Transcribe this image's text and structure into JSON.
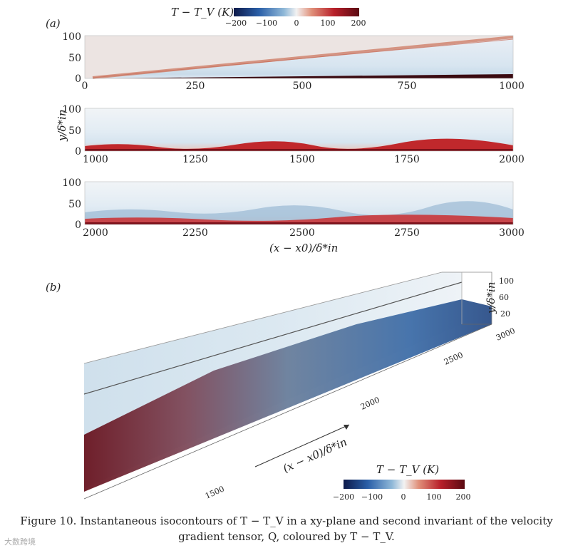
{
  "panel_a": {
    "label": "(a)",
    "colorbar": {
      "title": "T − T_V (K)",
      "ticks": [
        "−200",
        "−100",
        "0",
        "100",
        "200"
      ],
      "stops": [
        "#0d1a4a",
        "#2a5fa8",
        "#8fb8d8",
        "#f2f2f2",
        "#e0907a",
        "#b8202a",
        "#5a0a12"
      ]
    },
    "ylabel": "y/δ*in",
    "xlabel": "(x − x0)/δ*in",
    "rows": [
      {
        "x_ticks": [
          "0",
          "250",
          "500",
          "750",
          "1000"
        ],
        "y_ticks": [
          "100",
          "50",
          "0"
        ]
      },
      {
        "x_ticks": [
          "1000",
          "1250",
          "1500",
          "1750",
          "2000"
        ],
        "y_ticks": [
          "100",
          "50",
          "0"
        ]
      },
      {
        "x_ticks": [
          "2000",
          "2250",
          "2500",
          "2750",
          "3000"
        ],
        "y_ticks": [
          "100",
          "50",
          "0"
        ]
      }
    ]
  },
  "panel_b": {
    "label": "(b)",
    "x_ticks": [
      "1500",
      "2000",
      "2500",
      "3000"
    ],
    "y_ticks": [
      "100",
      "60",
      "20"
    ],
    "ylabel": "y/δ*in",
    "axis_label": "(x − x0)/δ*in",
    "colorbar": {
      "title": "T − T_V (K)",
      "ticks": [
        "−200",
        "−100",
        "0",
        "100",
        "200"
      ]
    }
  },
  "caption": {
    "figure": "Figure 10.",
    "text": "Instantaneous isocontours of T − T_V in a xy-plane and second invariant of the velocity gradient tensor, Q, coloured by T − T_V."
  },
  "watermark": "大数跨境"
}
